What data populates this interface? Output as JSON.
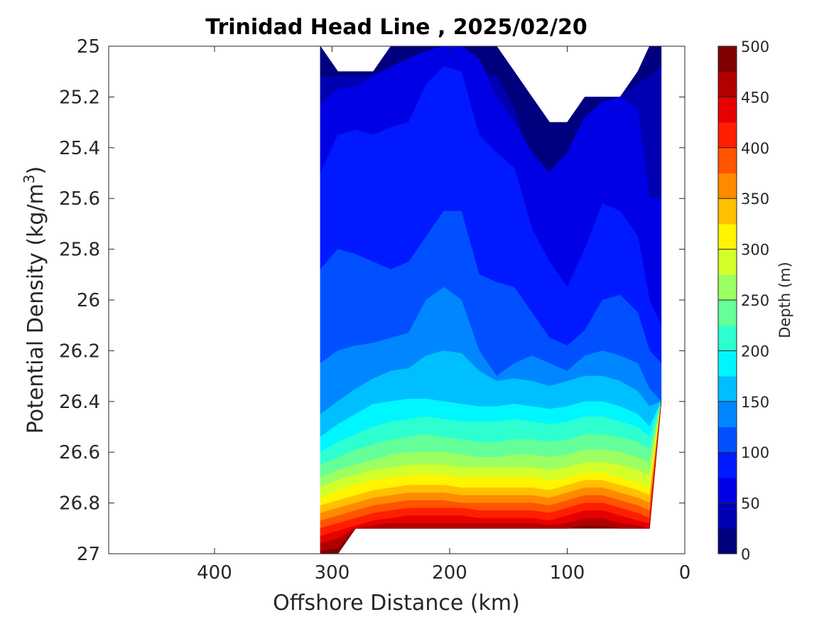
{
  "chart_data": {
    "type": "heatmap",
    "subtype": "filled-contour",
    "title": "Trinidad Head Line , 2025/02/20",
    "xlabel": "Offshore Distance (km)",
    "ylabel_main": "Potential Density (kg/m",
    "ylabel_sup": "3",
    "ylabel_tail": ")",
    "x_reversed": true,
    "y_reversed": true,
    "xlim": [
      490,
      0
    ],
    "ylim": [
      25,
      27
    ],
    "x_ticks": [
      400,
      300,
      200,
      100,
      0
    ],
    "x_tick_labels": [
      "400",
      "300",
      "200",
      "100",
      "0"
    ],
    "y_ticks": [
      25,
      25.2,
      25.4,
      25.6,
      25.8,
      26,
      26.2,
      26.4,
      26.6,
      26.8,
      27
    ],
    "y_tick_labels": [
      "25",
      "25.2",
      "25.4",
      "25.6",
      "25.8",
      "26",
      "26.2",
      "26.4",
      "26.6",
      "26.8",
      "27"
    ],
    "colorbar": {
      "label": "Depth (m)",
      "range": [
        0,
        500
      ],
      "levels": [
        0,
        25,
        50,
        75,
        100,
        125,
        150,
        175,
        200,
        225,
        250,
        275,
        300,
        325,
        350,
        375,
        400,
        425,
        450,
        475,
        500
      ],
      "colors": [
        "#00007f",
        "#0000b2",
        "#0000e5",
        "#0019ff",
        "#0050ff",
        "#0087ff",
        "#00bfff",
        "#00f6ff",
        "#2dffd0",
        "#64ff99",
        "#9cff62",
        "#d3ff2b",
        "#fff500",
        "#ffc000",
        "#ff8a00",
        "#ff5400",
        "#ff1e00",
        "#e70000",
        "#b20000",
        "#7f0000"
      ],
      "tick_values": [
        0,
        50,
        100,
        150,
        200,
        250,
        300,
        350,
        400,
        450,
        500
      ],
      "tick_labels": [
        "0",
        "50",
        "100",
        "150",
        "200",
        "250",
        "300",
        "350",
        "400",
        "450",
        "500"
      ]
    },
    "stations_x_km": [
      310,
      295,
      280,
      265,
      250,
      235,
      220,
      205,
      190,
      175,
      160,
      145,
      130,
      115,
      100,
      85,
      70,
      55,
      40,
      30,
      20
    ],
    "top_density": [
      25.0,
      25.1,
      25.1,
      25.1,
      25.0,
      25.0,
      25.0,
      25.0,
      25.0,
      25.0,
      25.0,
      25.1,
      25.2,
      25.3,
      25.3,
      25.2,
      25.2,
      25.2,
      25.1,
      25.0,
      25.0
    ],
    "bottom_density": [
      27.0,
      27.0,
      26.9,
      26.9,
      26.9,
      26.9,
      26.9,
      26.9,
      26.9,
      26.9,
      26.9,
      26.9,
      26.9,
      26.9,
      26.9,
      26.9,
      26.9,
      26.9,
      26.9,
      26.9,
      26.4
    ],
    "isopycnal_depth_levels": [
      25,
      50,
      75,
      100,
      125,
      150,
      175,
      200,
      225,
      250,
      275,
      300,
      325,
      350,
      375,
      400,
      425,
      450,
      475
    ],
    "isopycnal_density_at_depth": [
      [
        25.12,
        25.12,
        25.12,
        25.11,
        25.1,
        25.05,
        25.02,
        25.02,
        25.05,
        25.1,
        25.12,
        25.25,
        25.45,
        25.49,
        25.42,
        25.3,
        25.28,
        25.2,
        25.15,
        25.12,
        25.08
      ],
      [
        25.23,
        25.17,
        25.16,
        25.12,
        25.08,
        25.05,
        25.02,
        25.0,
        25.0,
        25.05,
        25.2,
        25.3,
        25.42,
        25.5,
        25.42,
        25.28,
        25.22,
        25.18,
        25.25,
        25.6,
        25.6
      ],
      [
        25.5,
        25.35,
        25.33,
        25.35,
        25.32,
        25.3,
        25.15,
        25.08,
        25.1,
        25.35,
        25.42,
        25.48,
        25.72,
        25.85,
        25.95,
        25.8,
        25.62,
        25.65,
        25.75,
        26.0,
        26.1
      ],
      [
        25.88,
        25.8,
        25.82,
        25.85,
        25.88,
        25.85,
        25.75,
        25.65,
        25.65,
        25.9,
        25.93,
        25.95,
        26.05,
        26.15,
        26.18,
        26.12,
        26.0,
        25.98,
        26.05,
        26.2,
        26.25
      ],
      [
        26.25,
        26.2,
        26.18,
        26.17,
        26.15,
        26.13,
        26.0,
        25.95,
        26.0,
        26.2,
        26.3,
        26.25,
        26.22,
        26.25,
        26.28,
        26.22,
        26.2,
        26.22,
        26.25,
        26.35,
        26.4
      ],
      [
        26.45,
        26.4,
        26.35,
        26.31,
        26.28,
        26.27,
        26.22,
        26.2,
        26.21,
        26.28,
        26.32,
        26.31,
        26.32,
        26.34,
        26.32,
        26.3,
        26.3,
        26.32,
        26.36,
        26.42,
        26.45
      ],
      [
        26.54,
        26.49,
        26.45,
        26.41,
        26.4,
        26.39,
        26.39,
        26.4,
        26.41,
        26.42,
        26.42,
        26.41,
        26.42,
        26.43,
        26.42,
        26.4,
        26.4,
        26.42,
        26.45,
        26.5,
        26.5
      ],
      [
        26.6,
        26.56,
        26.53,
        26.5,
        26.48,
        26.47,
        26.46,
        26.47,
        26.48,
        26.48,
        26.48,
        26.47,
        26.48,
        26.49,
        26.48,
        26.46,
        26.46,
        26.48,
        26.5,
        26.54,
        26.55
      ],
      [
        26.65,
        26.62,
        26.59,
        26.57,
        26.55,
        26.54,
        26.53,
        26.54,
        26.55,
        26.56,
        26.56,
        26.55,
        26.55,
        26.56,
        26.55,
        26.53,
        26.53,
        26.54,
        26.56,
        26.59,
        26.6
      ],
      [
        26.7,
        26.67,
        26.65,
        26.63,
        26.61,
        26.6,
        26.6,
        26.6,
        26.61,
        26.62,
        26.62,
        26.61,
        26.61,
        26.62,
        26.61,
        26.59,
        26.59,
        26.6,
        26.62,
        26.64,
        26.65
      ],
      [
        26.74,
        26.71,
        26.69,
        26.67,
        26.66,
        26.65,
        26.65,
        26.65,
        26.66,
        26.66,
        26.66,
        26.66,
        26.66,
        26.67,
        26.66,
        26.64,
        26.64,
        26.65,
        26.67,
        26.69,
        26.7
      ],
      [
        26.78,
        26.75,
        26.73,
        26.71,
        26.7,
        26.69,
        26.69,
        26.69,
        26.7,
        26.7,
        26.7,
        26.7,
        26.7,
        26.71,
        26.7,
        26.68,
        26.68,
        26.7,
        26.72,
        26.74,
        26.75
      ],
      [
        26.81,
        26.79,
        26.77,
        26.75,
        26.74,
        26.73,
        26.73,
        26.73,
        26.74,
        26.74,
        26.74,
        26.74,
        26.74,
        26.75,
        26.73,
        26.71,
        26.71,
        26.73,
        26.75,
        26.77,
        26.78
      ],
      [
        26.84,
        26.82,
        26.8,
        26.78,
        26.77,
        26.76,
        26.76,
        26.76,
        26.77,
        26.77,
        26.77,
        26.77,
        26.77,
        26.78,
        26.76,
        26.74,
        26.74,
        26.76,
        26.78,
        26.8,
        26.81
      ],
      [
        26.87,
        26.85,
        26.83,
        26.81,
        26.8,
        26.79,
        26.79,
        26.79,
        26.8,
        26.8,
        26.8,
        26.8,
        26.8,
        26.81,
        26.79,
        26.77,
        26.77,
        26.79,
        26.81,
        26.83,
        26.84
      ],
      [
        26.9,
        26.88,
        26.86,
        26.84,
        26.83,
        26.82,
        26.82,
        26.82,
        26.82,
        26.83,
        26.83,
        26.83,
        26.83,
        26.84,
        26.82,
        26.8,
        26.8,
        26.82,
        26.84,
        26.86,
        26.87
      ],
      [
        26.93,
        26.91,
        26.89,
        26.87,
        26.86,
        26.85,
        26.85,
        26.85,
        26.85,
        26.86,
        26.86,
        26.86,
        26.86,
        26.87,
        26.85,
        26.83,
        26.83,
        26.85,
        26.87,
        26.88,
        26.89
      ],
      [
        26.96,
        26.94,
        26.92,
        26.89,
        26.88,
        26.88,
        26.88,
        26.88,
        26.88,
        26.88,
        26.88,
        26.88,
        26.88,
        26.89,
        26.88,
        26.86,
        26.86,
        26.88,
        26.89,
        26.9,
        26.91
      ],
      [
        26.99,
        26.98,
        26.96,
        26.93,
        26.92,
        26.92,
        26.92,
        26.92,
        26.92,
        26.92,
        26.92,
        26.92,
        26.92,
        26.92,
        26.91,
        26.89,
        26.89,
        26.91,
        26.92,
        26.93,
        26.94
      ]
    ]
  }
}
